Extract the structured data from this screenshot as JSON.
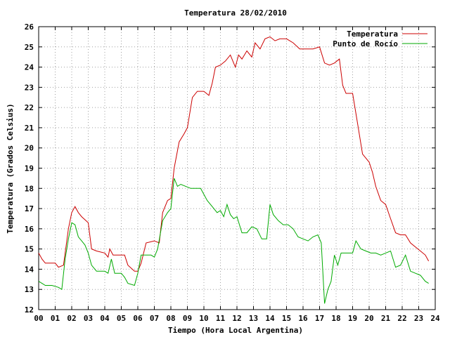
{
  "chart_data": {
    "type": "line",
    "title": "Temperatura 28/02/2010",
    "xlabel": "Tiempo (Hora Local Argentina)",
    "ylabel": "Temperatura (Grados Celsius)",
    "xlim": [
      0,
      24
    ],
    "ylim": [
      12,
      26
    ],
    "x_ticks": [
      "00",
      "01",
      "02",
      "03",
      "04",
      "05",
      "06",
      "07",
      "08",
      "09",
      "10",
      "11",
      "12",
      "13",
      "14",
      "15",
      "16",
      "17",
      "18",
      "19",
      "20",
      "21",
      "22",
      "23",
      "24"
    ],
    "y_ticks": [
      "12",
      "13",
      "14",
      "15",
      "16",
      "17",
      "18",
      "19",
      "20",
      "21",
      "22",
      "23",
      "24",
      "25",
      "26"
    ],
    "grid": true,
    "legend_position": "top-right",
    "colors": {
      "Temperatura": "#cc0000",
      "Punto de Rocío": "#00aa00"
    },
    "series": [
      {
        "name": "Temperatura",
        "x": [
          0,
          0.2,
          0.4,
          1.0,
          1.2,
          1.5,
          1.8,
          2.0,
          2.2,
          2.4,
          2.6,
          3.0,
          3.2,
          3.5,
          4.0,
          4.2,
          4.3,
          4.5,
          4.8,
          5.2,
          5.4,
          5.8,
          6.0,
          6.2,
          6.5,
          7.0,
          7.3,
          7.5,
          7.8,
          8.0,
          8.2,
          8.5,
          8.8,
          9.0,
          9.3,
          9.6,
          10.0,
          10.3,
          10.5,
          10.7,
          11.0,
          11.3,
          11.6,
          11.9,
          12.1,
          12.3,
          12.6,
          12.9,
          13.1,
          13.4,
          13.7,
          14.0,
          14.3,
          14.6,
          15.0,
          15.4,
          15.8,
          16.2,
          16.6,
          17.0,
          17.3,
          17.6,
          17.9,
          18.2,
          18.4,
          18.6,
          18.8,
          19.0,
          19.3,
          19.6,
          20.0,
          20.2,
          20.4,
          20.7,
          21.0,
          21.3,
          21.6,
          21.9,
          22.2,
          22.5,
          22.8,
          23.1,
          23.4,
          23.6
        ],
        "values": [
          14.8,
          14.5,
          14.3,
          14.3,
          14.1,
          14.2,
          16.0,
          16.8,
          17.1,
          16.8,
          16.6,
          16.3,
          15.0,
          14.9,
          14.8,
          14.6,
          15.0,
          14.7,
          14.7,
          14.7,
          14.2,
          13.9,
          13.9,
          14.3,
          15.3,
          15.4,
          15.3,
          16.8,
          17.4,
          17.5,
          19.0,
          20.3,
          20.7,
          21.0,
          22.5,
          22.8,
          22.8,
          22.6,
          23.2,
          24.0,
          24.1,
          24.3,
          24.6,
          24.0,
          24.6,
          24.4,
          24.8,
          24.5,
          25.2,
          24.9,
          25.4,
          25.5,
          25.3,
          25.4,
          25.4,
          25.2,
          24.9,
          24.9,
          24.9,
          25.0,
          24.2,
          24.1,
          24.2,
          24.4,
          23.1,
          22.7,
          22.7,
          22.7,
          21.2,
          19.7,
          19.3,
          18.8,
          18.1,
          17.4,
          17.2,
          16.5,
          15.8,
          15.7,
          15.7,
          15.3,
          15.1,
          14.9,
          14.7,
          14.4
        ]
      },
      {
        "name": "Punto de Rocío",
        "x": [
          0,
          0.2,
          0.4,
          0.8,
          1.2,
          1.4,
          1.6,
          1.8,
          2.0,
          2.2,
          2.4,
          2.6,
          2.8,
          3.0,
          3.2,
          3.5,
          3.8,
          4.0,
          4.2,
          4.4,
          4.6,
          4.8,
          5.0,
          5.2,
          5.4,
          5.8,
          6.0,
          6.2,
          6.5,
          6.8,
          7.0,
          7.2,
          7.5,
          7.8,
          8.0,
          8.2,
          8.4,
          8.6,
          8.9,
          9.2,
          9.5,
          9.8,
          10.2,
          10.5,
          10.8,
          11.0,
          11.2,
          11.4,
          11.6,
          11.8,
          12.0,
          12.3,
          12.6,
          12.9,
          13.2,
          13.5,
          13.8,
          14.0,
          14.2,
          14.5,
          14.8,
          15.1,
          15.4,
          15.7,
          16.0,
          16.3,
          16.6,
          16.9,
          17.1,
          17.3,
          17.5,
          17.7,
          17.9,
          18.1,
          18.3,
          18.6,
          19.0,
          19.2,
          19.5,
          19.8,
          20.1,
          20.4,
          20.7,
          21.0,
          21.3,
          21.6,
          21.9,
          22.2,
          22.5,
          22.8,
          23.1,
          23.4,
          23.6
        ],
        "values": [
          13.4,
          13.3,
          13.2,
          13.2,
          13.1,
          13.0,
          14.5,
          15.5,
          16.3,
          16.2,
          15.6,
          15.4,
          15.2,
          14.8,
          14.2,
          13.9,
          13.9,
          13.9,
          13.8,
          14.5,
          13.8,
          13.8,
          13.8,
          13.6,
          13.3,
          13.2,
          13.8,
          14.7,
          14.7,
          14.7,
          14.6,
          15.0,
          16.4,
          16.8,
          17.0,
          18.5,
          18.1,
          18.2,
          18.1,
          18.0,
          18.0,
          18.0,
          17.4,
          17.1,
          16.8,
          16.9,
          16.6,
          17.2,
          16.7,
          16.5,
          16.6,
          15.8,
          15.8,
          16.1,
          16.0,
          15.5,
          15.5,
          17.2,
          16.7,
          16.4,
          16.2,
          16.2,
          16.0,
          15.6,
          15.5,
          15.4,
          15.6,
          15.7,
          15.3,
          12.3,
          13.0,
          13.4,
          14.7,
          14.2,
          14.8,
          14.8,
          14.8,
          15.4,
          15.0,
          14.9,
          14.8,
          14.8,
          14.7,
          14.8,
          14.9,
          14.1,
          14.2,
          14.7,
          13.9,
          13.8,
          13.7,
          13.4,
          13.3
        ]
      }
    ]
  }
}
